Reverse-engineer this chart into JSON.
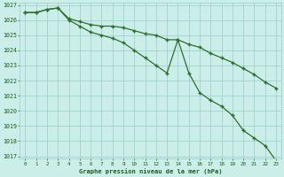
{
  "line1": [
    1026.5,
    1026.5,
    1026.7,
    1026.8,
    1026.1,
    1025.9,
    1025.7,
    1025.6,
    1025.6,
    1025.5,
    1025.3,
    1025.1,
    1025.0,
    1024.7,
    1024.7,
    1024.4,
    1024.2,
    1023.8,
    1023.5,
    1023.2,
    1022.8,
    1022.4,
    1021.9,
    1021.5
  ],
  "line2": [
    1026.5,
    1026.5,
    1026.7,
    1026.8,
    1026.0,
    1025.6,
    1025.2,
    1025.0,
    1024.8,
    1024.5,
    1024.0,
    1023.5,
    1023.0,
    1022.5,
    1024.7,
    1022.5,
    1021.2,
    1020.7,
    1020.3,
    1019.7,
    1018.7,
    1018.2,
    1017.7,
    1016.7
  ],
  "x": [
    0,
    1,
    2,
    3,
    4,
    5,
    6,
    7,
    8,
    9,
    10,
    11,
    12,
    13,
    14,
    15,
    16,
    17,
    18,
    19,
    20,
    21,
    22,
    23
  ],
  "ylim_min": 1017,
  "ylim_max": 1027,
  "yticks": [
    1017,
    1018,
    1019,
    1020,
    1021,
    1022,
    1023,
    1024,
    1025,
    1026,
    1027
  ],
  "xticks": [
    0,
    1,
    2,
    3,
    4,
    5,
    6,
    7,
    8,
    9,
    10,
    11,
    12,
    13,
    14,
    15,
    16,
    17,
    18,
    19,
    20,
    21,
    22,
    23
  ],
  "line_color": "#2d6e2d",
  "bg_color": "#cceee8",
  "grid_color": "#99cccc",
  "xlabel": "Graphe pression niveau de la mer (hPa)",
  "xlabel_color": "#1a5c1a",
  "tick_color": "#1a5c1a"
}
